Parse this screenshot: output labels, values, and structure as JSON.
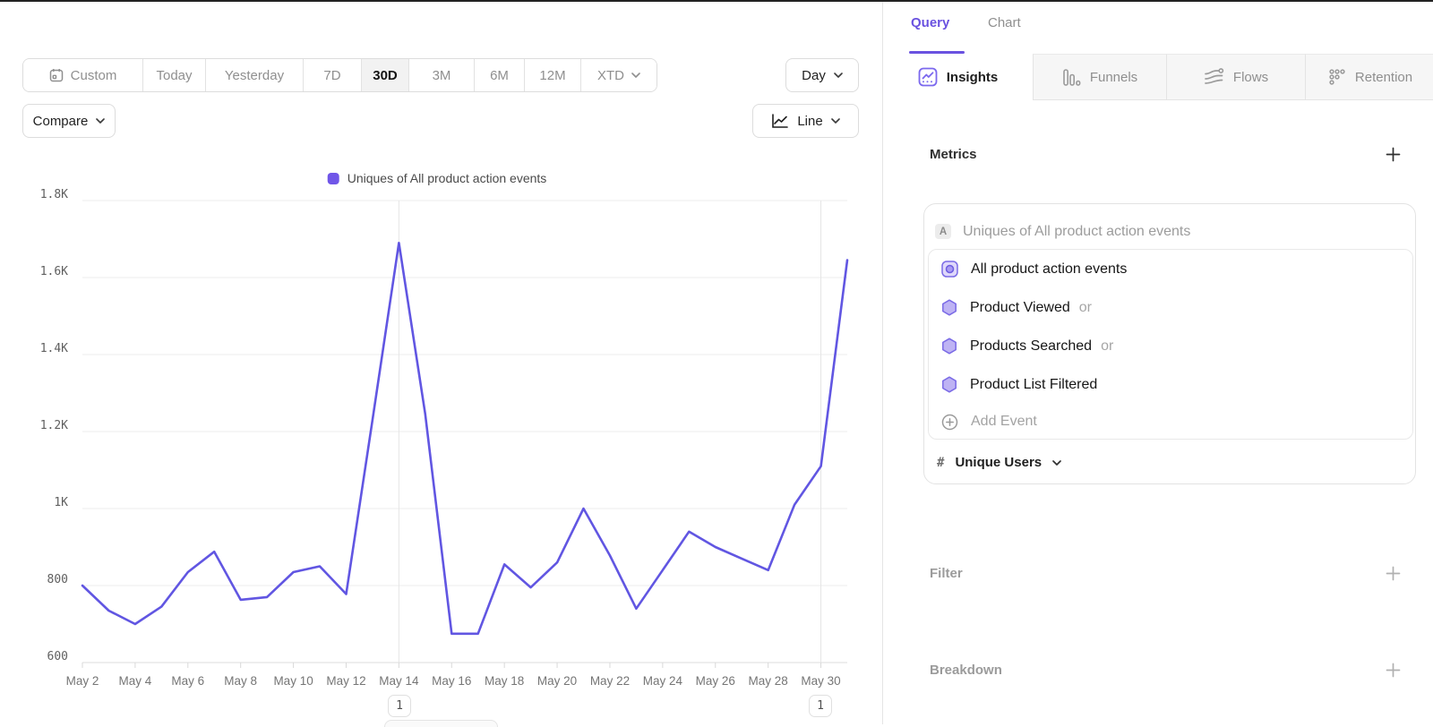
{
  "toolbar": {
    "ranges": [
      {
        "label": "Custom"
      },
      {
        "label": "Today"
      },
      {
        "label": "Yesterday"
      },
      {
        "label": "7D"
      },
      {
        "label": "30D"
      },
      {
        "label": "3M"
      },
      {
        "label": "6M"
      },
      {
        "label": "12M"
      },
      {
        "label": "XTD"
      }
    ],
    "selected_range": "30D",
    "granularity_label": "Day",
    "compare_label": "Compare",
    "chart_type_label": "Line"
  },
  "legend": {
    "label": "Uniques of All product action events",
    "color": "#7056e8"
  },
  "chart_data": {
    "type": "line",
    "title": "Uniques of All product action events",
    "xlabel": "",
    "ylabel": "",
    "ylim": [
      600,
      1800
    ],
    "grid": true,
    "legend_position": "top-center",
    "line_color": "#6156e2",
    "x": [
      "May 2",
      "May 3",
      "May 4",
      "May 5",
      "May 6",
      "May 7",
      "May 8",
      "May 9",
      "May 10",
      "May 11",
      "May 12",
      "May 13",
      "May 14",
      "May 15",
      "May 16",
      "May 17",
      "May 18",
      "May 19",
      "May 20",
      "May 21",
      "May 22",
      "May 23",
      "May 24",
      "May 25",
      "May 26",
      "May 27",
      "May 28",
      "May 29",
      "May 30",
      "May 31"
    ],
    "series": [
      {
        "name": "Uniques of All product action events",
        "values": [
          800,
          735,
          700,
          745,
          835,
          888,
          763,
          770,
          835,
          850,
          778,
          1230,
          1690,
          1245,
          675,
          675,
          855,
          795,
          860,
          1000,
          878,
          740,
          840,
          940,
          900,
          870,
          840,
          1010,
          1110,
          1645
        ]
      }
    ],
    "x_tick_labels": [
      "May 2",
      "May 4",
      "May 6",
      "May 8",
      "May 10",
      "May 12",
      "May 14",
      "May 16",
      "May 18",
      "May 20",
      "May 22",
      "May 24",
      "May 26",
      "May 28",
      "May 30"
    ],
    "y_ticks": [
      {
        "label": "600",
        "value": 600
      },
      {
        "label": "800",
        "value": 800
      },
      {
        "label": "1K",
        "value": 1000
      },
      {
        "label": "1.2K",
        "value": 1200
      },
      {
        "label": "1.4K",
        "value": 1400
      },
      {
        "label": "1.6K",
        "value": 1600
      },
      {
        "label": "1.8K",
        "value": 1800
      }
    ],
    "annotations": [
      {
        "label": "1",
        "date": "May 14"
      },
      {
        "label": "1",
        "date": "May 30"
      }
    ]
  },
  "right_panel": {
    "view_tabs": [
      {
        "label": "Query"
      },
      {
        "label": "Chart"
      }
    ],
    "selected_view_tab": "Query",
    "report_tabs": [
      {
        "label": "Insights"
      },
      {
        "label": "Funnels"
      },
      {
        "label": "Flows"
      },
      {
        "label": "Retention"
      }
    ],
    "selected_report_tab": "Insights",
    "metrics": {
      "header": "Metrics",
      "group_badge": "A",
      "group_label": "Uniques of All product action events",
      "events": [
        {
          "name": "All product action events",
          "suffix": ""
        },
        {
          "name": "Product Viewed",
          "suffix": "or"
        },
        {
          "name": "Products Searched",
          "suffix": "or"
        },
        {
          "name": "Product List Filtered",
          "suffix": ""
        }
      ],
      "add_event_label": "Add Event",
      "measure": {
        "symbol": "#",
        "label": "Unique Users"
      }
    },
    "sections": [
      {
        "label": "Filter"
      },
      {
        "label": "Breakdown"
      }
    ]
  },
  "icons": [
    "calendar-icon",
    "chevron-down-icon",
    "line-chart-icon",
    "insights-chart-icon",
    "funnel-bars-icon",
    "flows-icon",
    "retention-dots-icon",
    "hexagon-event-icon",
    "event-group-icon",
    "plus-circle-icon",
    "plus-icon",
    "number-sign"
  ],
  "colors": {
    "accent_purple": "#6a52e0",
    "line_purple": "#6156e2",
    "hexagon_fill": "#beb3f4",
    "hexagon_stroke": "#7a6ae6",
    "gridline": "#ededed",
    "muted_text": "#8f8f8f"
  }
}
